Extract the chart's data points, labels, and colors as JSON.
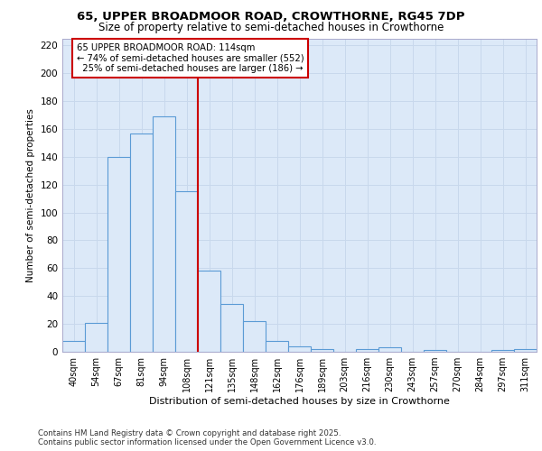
{
  "title_line1": "65, UPPER BROADMOOR ROAD, CROWTHORNE, RG45 7DP",
  "title_line2": "Size of property relative to semi-detached houses in Crowthorne",
  "xlabel": "Distribution of semi-detached houses by size in Crowthorne",
  "ylabel": "Number of semi-detached properties",
  "bar_labels": [
    "40sqm",
    "54sqm",
    "67sqm",
    "81sqm",
    "94sqm",
    "108sqm",
    "121sqm",
    "135sqm",
    "148sqm",
    "162sqm",
    "176sqm",
    "189sqm",
    "203sqm",
    "216sqm",
    "230sqm",
    "243sqm",
    "257sqm",
    "270sqm",
    "284sqm",
    "297sqm",
    "311sqm"
  ],
  "bar_values": [
    8,
    21,
    140,
    157,
    169,
    115,
    58,
    34,
    22,
    8,
    4,
    2,
    0,
    2,
    3,
    0,
    1,
    0,
    0,
    1,
    2
  ],
  "bar_face_color": "#dce9f8",
  "bar_edge_color": "#5b9bd5",
  "property_label": "65 UPPER BROADMOOR ROAD: 114sqm",
  "pct_smaller": 74,
  "n_smaller": 552,
  "pct_larger": 25,
  "n_larger": 186,
  "vline_x_index": 6,
  "grid_color": "#c8d8ec",
  "background_color": "#dce9f8",
  "plot_bg_color": "#dce9f8",
  "annotation_box_facecolor": "#ffffff",
  "annotation_box_edgecolor": "#cc0000",
  "vline_color": "#cc0000",
  "ylim": [
    0,
    225
  ],
  "yticks": [
    0,
    20,
    40,
    60,
    80,
    100,
    120,
    140,
    160,
    180,
    200,
    220
  ],
  "footer_line1": "Contains HM Land Registry data © Crown copyright and database right 2025.",
  "footer_line2": "Contains public sector information licensed under the Open Government Licence v3.0."
}
